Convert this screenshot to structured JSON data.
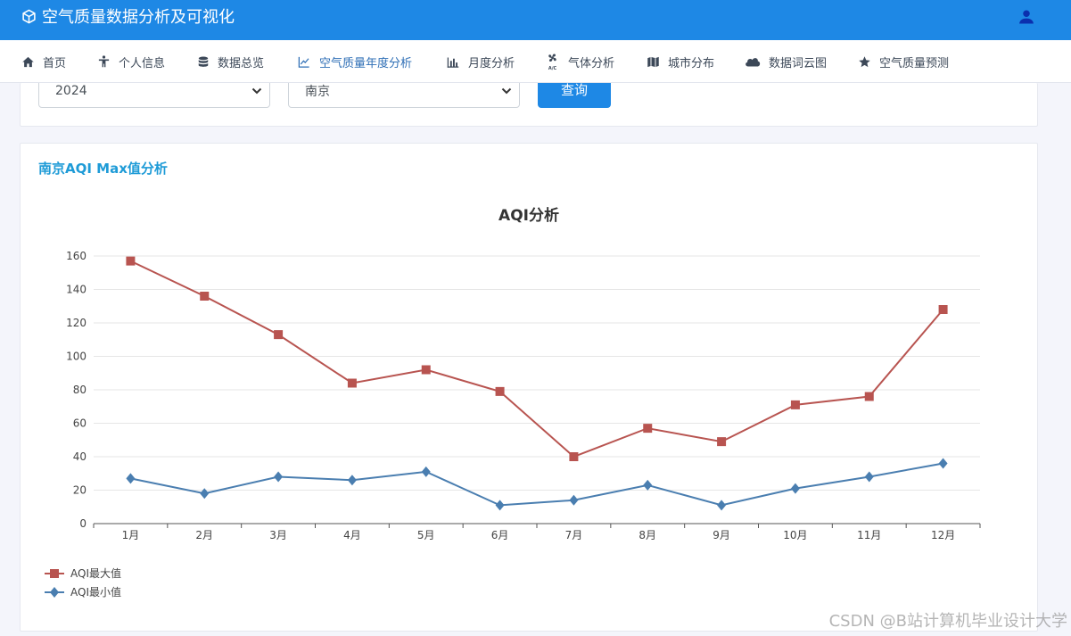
{
  "app": {
    "title": "空气质量数据分析及可视化"
  },
  "nav": {
    "items": [
      {
        "label": "首页",
        "icon": "home-icon"
      },
      {
        "label": "个人信息",
        "icon": "person-icon"
      },
      {
        "label": "数据总览",
        "icon": "database-icon"
      },
      {
        "label": "空气质量年度分析",
        "icon": "line-chart-icon"
      },
      {
        "label": "月度分析",
        "icon": "bar-chart-icon"
      },
      {
        "label": "气体分析",
        "icon": "air-conditioner-icon"
      },
      {
        "label": "城市分布",
        "icon": "map-icon"
      },
      {
        "label": "数据词云图",
        "icon": "cloud-icon"
      },
      {
        "label": "空气质量预测",
        "icon": "star-icon"
      }
    ],
    "active_index": 3
  },
  "filters": {
    "year": "2024",
    "city": "南京",
    "query_label": "查询"
  },
  "card": {
    "heading": "南京AQI Max值分析"
  },
  "chart_data": {
    "type": "line",
    "title": "AQI分析",
    "categories": [
      "1月",
      "2月",
      "3月",
      "4月",
      "5月",
      "6月",
      "7月",
      "8月",
      "9月",
      "10月",
      "11月",
      "12月"
    ],
    "series": [
      {
        "name": "AQI最大值",
        "values": [
          157,
          136,
          113,
          84,
          92,
          79,
          40,
          57,
          49,
          71,
          76,
          128
        ],
        "color": "#b85450",
        "marker": "square"
      },
      {
        "name": "AQI最小值",
        "values": [
          27,
          18,
          28,
          26,
          31,
          11,
          14,
          23,
          11,
          21,
          28,
          36
        ],
        "color": "#4a7eb0",
        "marker": "diamond"
      }
    ],
    "ylim": [
      0,
      160
    ],
    "yticks": [
      0,
      20,
      40,
      60,
      80,
      100,
      120,
      140,
      160
    ],
    "grid": true,
    "legend_position": "bottom-left"
  },
  "watermark": "CSDN @B站计算机毕业设计大学"
}
